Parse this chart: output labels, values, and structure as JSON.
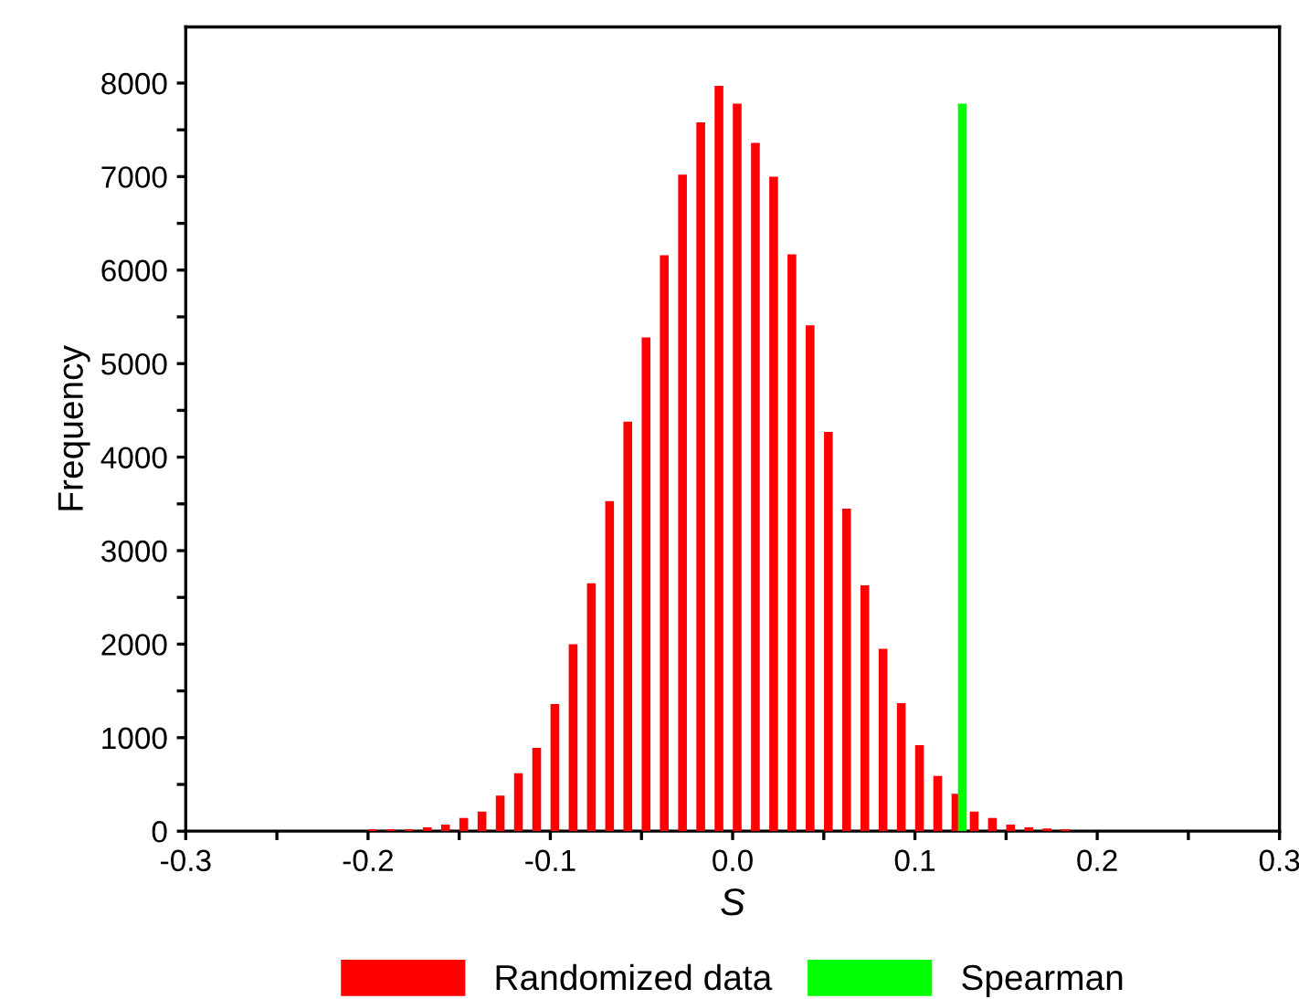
{
  "chart_data": {
    "type": "bar",
    "xlabel": "S",
    "ylabel": "Frequency",
    "series": [
      {
        "name": "Randomized data",
        "color": "#ff0000",
        "x": [
          -0.1975,
          -0.1875,
          -0.1775,
          -0.1675,
          -0.1575,
          -0.1475,
          -0.1375,
          -0.1275,
          -0.1175,
          -0.1075,
          -0.0975,
          -0.0875,
          -0.0775,
          -0.0675,
          -0.0575,
          -0.0475,
          -0.0375,
          -0.0275,
          -0.0175,
          -0.0075,
          0.0025,
          0.0125,
          0.0225,
          0.0325,
          0.0425,
          0.0525,
          0.0625,
          0.0725,
          0.0825,
          0.0925,
          0.1025,
          0.1125,
          0.1225,
          0.1325,
          0.1425,
          0.1525,
          0.1625,
          0.1725,
          0.1825
        ],
        "values": [
          20,
          20,
          20,
          40,
          70,
          140,
          210,
          380,
          620,
          890,
          1360,
          2000,
          2650,
          3530,
          4380,
          5280,
          6160,
          7020,
          7580,
          7970,
          7780,
          7360,
          7000,
          6170,
          5410,
          4270,
          3450,
          2630,
          1950,
          1370,
          920,
          590,
          400,
          210,
          140,
          70,
          40,
          30,
          20
        ]
      },
      {
        "name": "Spearman",
        "color": "#00ff00",
        "x": [
          0.126
        ],
        "values": [
          7780
        ]
      }
    ],
    "xlim": [
      -0.3,
      0.3
    ],
    "xticks": [
      -0.3,
      {
        "value": -0.25,
        "label": null
      },
      -0.2,
      {
        "value": -0.15,
        "label": null
      },
      -0.1,
      {
        "value": -0.05,
        "label": null
      },
      {
        "value": 0,
        "label": "0.0"
      },
      {
        "value": 0.05,
        "label": null
      },
      0.1,
      {
        "value": 0.15,
        "label": null
      },
      0.2,
      {
        "value": 0.25,
        "label": null
      },
      0.3
    ],
    "ylim": [
      0,
      8600
    ],
    "yticks": [
      0,
      {
        "value": 500,
        "label": null
      },
      1000,
      {
        "value": 1500,
        "label": null
      },
      2000,
      {
        "value": 2500,
        "label": null
      },
      3000,
      {
        "value": 3500,
        "label": null
      },
      4000,
      {
        "value": 4500,
        "label": null
      },
      5000,
      {
        "value": 5500,
        "label": null
      },
      6000,
      {
        "value": 6500,
        "label": null
      },
      7000,
      {
        "value": 7500,
        "label": null
      },
      8000
    ],
    "grid": false,
    "legend": "bottom"
  }
}
